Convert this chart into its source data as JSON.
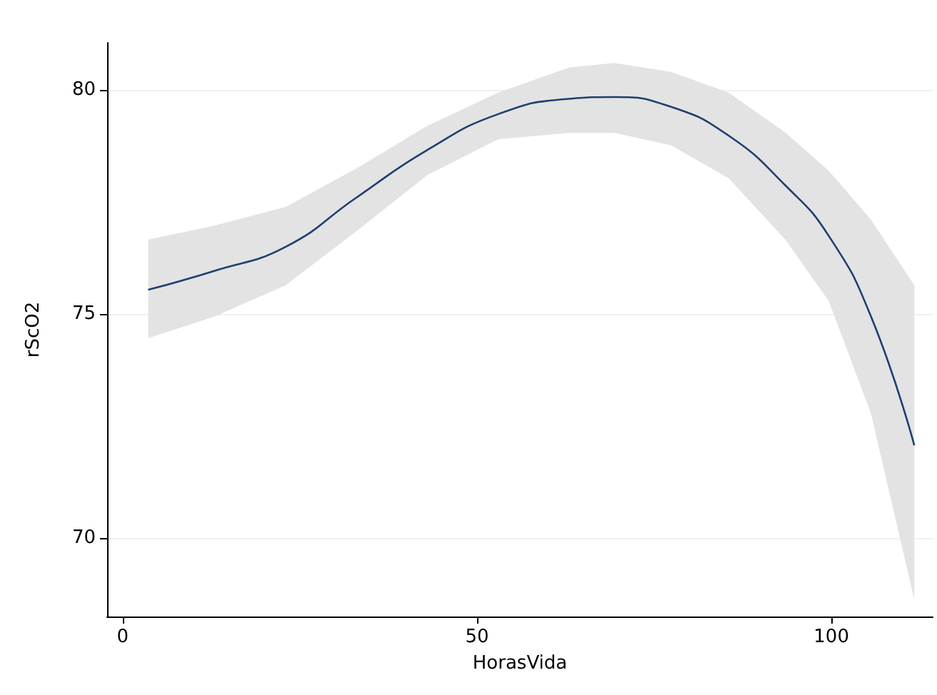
{
  "chart_data": {
    "type": "line",
    "xlabel": "HorasVida",
    "ylabel": "rScO2",
    "x": [
      3.6,
      12.9,
      23,
      33,
      43,
      53,
      63,
      69.4,
      77.4,
      85.5,
      93.5,
      99.6,
      105.6,
      111.7
    ],
    "series": [
      {
        "color": "#1f3f6e",
        "values": [
          75.54,
          75.96,
          76.5,
          77.6,
          78.66,
          79.46,
          79.8,
          79.84,
          79.62,
          78.98,
          77.87,
          76.75,
          74.94,
          72.07
        ],
        "lower": [
          74.46,
          74.94,
          75.64,
          76.85,
          78.1,
          78.9,
          79.04,
          79.04,
          78.76,
          78.03,
          76.66,
          75.3,
          72.77,
          68.63
        ],
        "upper": [
          76.66,
          76.97,
          77.39,
          78.25,
          79.2,
          79.94,
          80.5,
          80.6,
          80.4,
          79.94,
          79.05,
          78.2,
          77.1,
          75.64
        ]
      }
    ],
    "xlim": [
      -2.2,
      114.3
    ],
    "xticks": [
      0,
      50,
      100
    ],
    "ylim": [
      68.25,
      81.05
    ],
    "yticks": [
      70,
      75,
      80
    ],
    "grid": "y",
    "marker": "none",
    "line_style": "solid"
  }
}
